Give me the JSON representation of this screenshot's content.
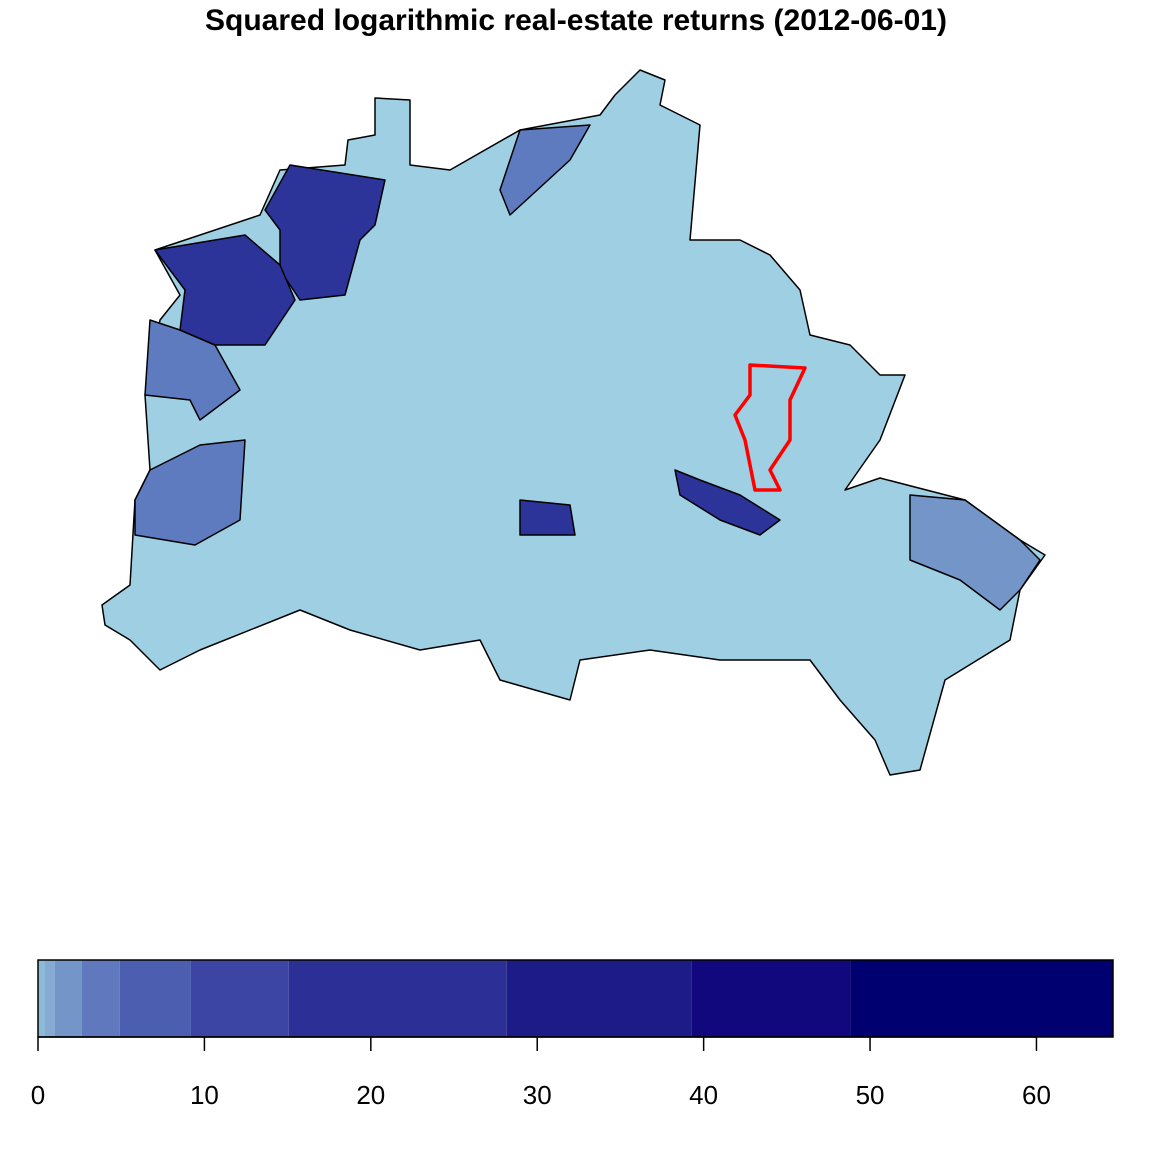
{
  "chart_data": {
    "type": "choropleth",
    "title": "Squared logarithmic real-estate returns (2012-06-01)",
    "legend": {
      "breaks": [
        0,
        0.42,
        1.02,
        2.64,
        4.92,
        9.19,
        15.07,
        28.17,
        39.28,
        48.83,
        64.6
      ],
      "colors": [
        "#8cbbd9",
        "#86aad3",
        "#7395c8",
        "#6078be",
        "#4c5eb0",
        "#3c45a3",
        "#2c2f96",
        "#1c1b88",
        "#10087c",
        "#000070"
      ],
      "xlim": [
        0,
        64.6
      ],
      "xticks": [
        0,
        10,
        20,
        30,
        40,
        50,
        60
      ]
    }
  }
}
